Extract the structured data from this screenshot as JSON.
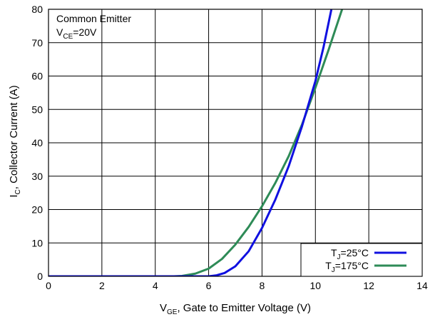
{
  "chart_data": {
    "type": "line",
    "title": "",
    "xlabel": {
      "main": "V",
      "sub": "GE",
      "rest": ", Gate to Emitter Voltage (V)"
    },
    "ylabel": {
      "main": "I",
      "sub": "C",
      "rest": ", Collector Current (A)"
    },
    "xlim": [
      0,
      14
    ],
    "ylim": [
      0,
      80
    ],
    "xticks": [
      "0",
      "2",
      "4",
      "6",
      "8",
      "10",
      "12",
      "14"
    ],
    "yticks": [
      "0",
      "10",
      "20",
      "30",
      "40",
      "50",
      "60",
      "70",
      "80"
    ],
    "grid": true,
    "annotation": {
      "line1": "Common Emitter",
      "line2_main": "V",
      "line2_sub": "CE",
      "line2_rest": "=20V"
    },
    "legend_position": "bottom-right",
    "series": [
      {
        "legend_main": "T",
        "legend_sub": "J",
        "legend_rest": "=25°C",
        "color": "#1010e0",
        "x": [
          0,
          6.0,
          6.3,
          6.6,
          7.0,
          7.5,
          8.0,
          8.5,
          9.0,
          9.5,
          10.0,
          10.3,
          10.6
        ],
        "y": [
          0,
          0,
          0.3,
          1.0,
          3.0,
          7.5,
          14.5,
          23.0,
          33.0,
          45.0,
          58.5,
          68.5,
          80.0
        ]
      },
      {
        "legend_main": "T",
        "legend_sub": "J",
        "legend_rest": "=175°C",
        "color": "#2e8b57",
        "x": [
          0,
          4.7,
          5.0,
          5.5,
          6.0,
          6.5,
          7.0,
          7.5,
          8.0,
          8.5,
          9.0,
          9.5,
          10.0,
          10.5,
          11.0
        ],
        "y": [
          0,
          0,
          0.1,
          0.8,
          2.3,
          5.2,
          9.5,
          14.8,
          21.0,
          28.0,
          36.0,
          45.5,
          56.5,
          68.0,
          80.0
        ]
      }
    ]
  }
}
